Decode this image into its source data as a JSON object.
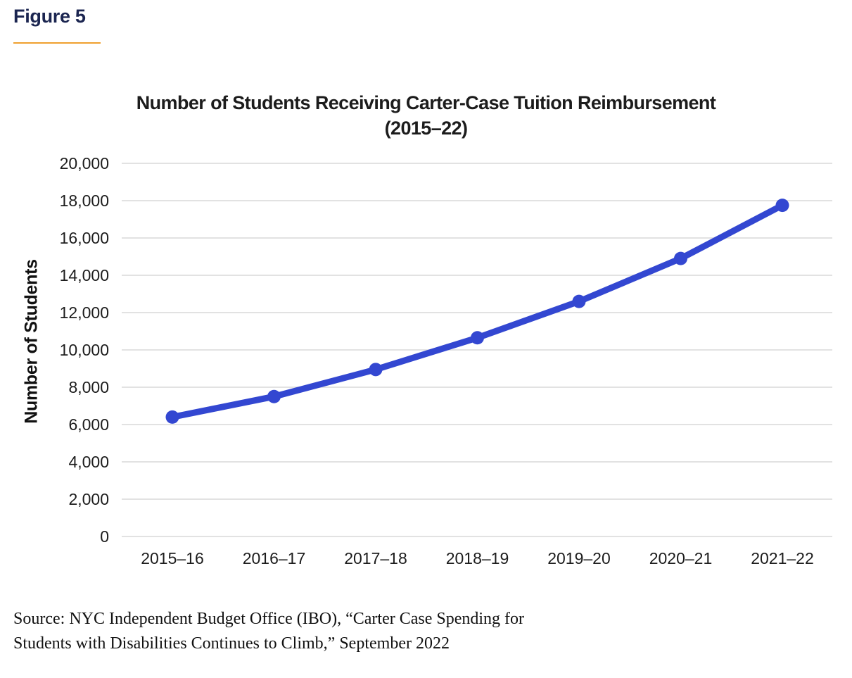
{
  "figure": {
    "label": "Figure 5"
  },
  "chart_data": {
    "type": "line",
    "title_line1": "Number of Students Receiving Carter-Case Tuition Reimbursement",
    "title_line2": "(2015–22)",
    "xlabel": "",
    "ylabel": "Number of Students",
    "categories": [
      "2015–16",
      "2016–17",
      "2017–18",
      "2018–19",
      "2019–20",
      "2020–21",
      "2021–22"
    ],
    "values": [
      6400,
      7500,
      8950,
      10650,
      12600,
      14900,
      17750
    ],
    "ylim": [
      0,
      20000
    ],
    "ytick_step": 2000,
    "ytick_labels": [
      "0",
      "2,000",
      "4,000",
      "6,000",
      "8,000",
      "10,000",
      "12,000",
      "14,000",
      "16,000",
      "18,000",
      "20,000"
    ],
    "grid": "horizontal",
    "legend": "none",
    "line_color": "#3347d1",
    "marker": "circle",
    "gridline_color": "#d8d8d8"
  },
  "source": {
    "line1": "Source: NYC Independent Budget Office (IBO), “Carter Case Spending for",
    "line2": "Students with Disabilities Continues to Climb,” September 2022"
  },
  "colors": {
    "figure_label": "#1b2550",
    "underline": "#efa02f",
    "title_text": "#1c1c1c",
    "axis_text": "#1c1c1c",
    "background": "#ffffff"
  }
}
